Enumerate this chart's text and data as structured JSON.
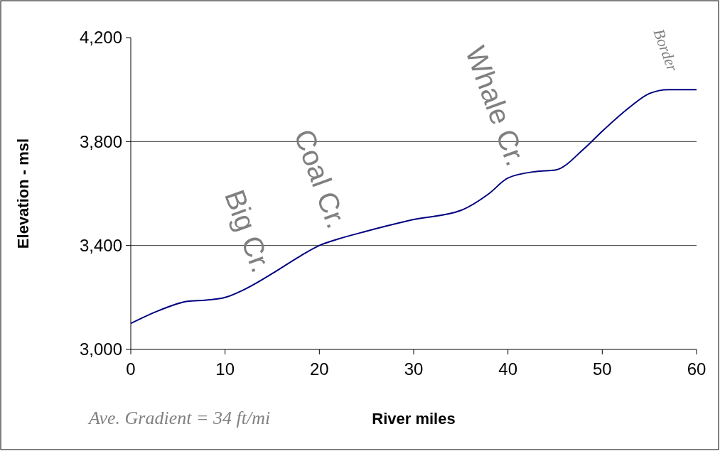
{
  "chart_data": {
    "type": "line",
    "xlabel": "River miles",
    "ylabel": "Elevation - msl",
    "x": [
      0,
      3,
      6,
      8,
      10,
      12,
      15,
      18,
      20,
      22,
      25,
      30,
      35,
      38,
      40,
      43,
      45,
      48,
      50,
      53,
      55,
      57,
      60
    ],
    "values": [
      3100,
      3150,
      3185,
      3190,
      3200,
      3230,
      3292,
      3360,
      3400,
      3425,
      3455,
      3500,
      3535,
      3600,
      3660,
      3685,
      3690,
      3770,
      3840,
      3935,
      3985,
      4000,
      4000
    ],
    "color": "#000080",
    "xlim": [
      0,
      60
    ],
    "xticks": [
      0,
      10,
      20,
      30,
      40,
      50,
      60
    ],
    "ylim": [
      3000,
      4200
    ],
    "yticks": [
      {
        "value": 3000,
        "label": "3,000"
      },
      {
        "value": 3400,
        "label": "3,400"
      },
      {
        "value": 3800,
        "label": "3,800"
      },
      {
        "value": 4200,
        "label": "4,200"
      }
    ],
    "grid": "y",
    "marker": "none",
    "line_style": "solid",
    "annotations": [
      {
        "text": "Big Cr.",
        "x": 13,
        "y": 3250
      },
      {
        "text": "Coal Cr.",
        "x": 21,
        "y": 3420
      },
      {
        "text": "Whale Cr.",
        "x": 40,
        "y": 3660
      },
      {
        "text": "Border",
        "x": 57,
        "y": 4000
      },
      "Ave. Gradient = 34 ft/mi"
    ]
  }
}
